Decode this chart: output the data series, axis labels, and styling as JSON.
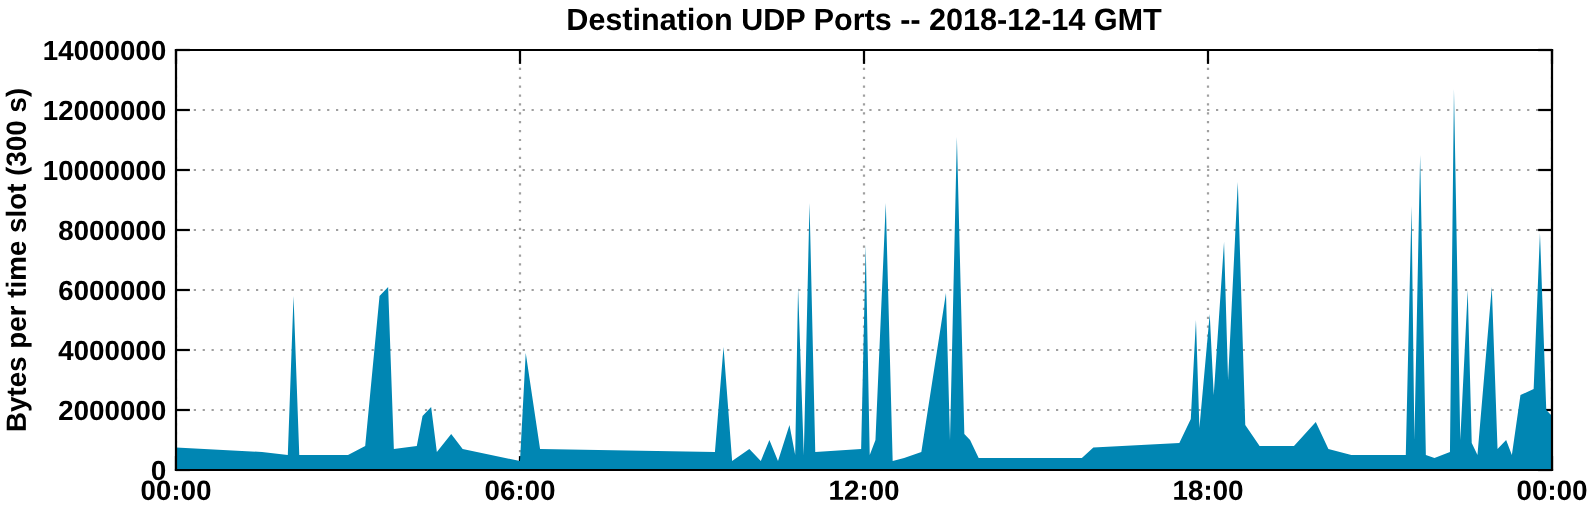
{
  "chart_data": {
    "type": "area",
    "title": "Destination UDP Ports -- 2018-12-14 GMT",
    "ylabel": "Bytes per time slot (300 s)",
    "x": [
      0,
      1.5,
      1.95,
      2.05,
      2.15,
      3.0,
      3.3,
      3.55,
      3.7,
      3.8,
      4.2,
      4.3,
      4.45,
      4.55,
      4.8,
      5.0,
      6.0,
      6.1,
      6.35,
      9.4,
      9.55,
      9.7,
      10.0,
      10.2,
      10.35,
      10.5,
      10.7,
      10.8,
      10.85,
      10.95,
      11.05,
      11.15,
      11.95,
      12.03,
      12.1,
      12.2,
      12.38,
      12.5,
      12.7,
      13.0,
      13.43,
      13.5,
      13.62,
      13.75,
      13.85,
      14.0,
      15.0,
      15.8,
      16.0,
      17.0,
      17.5,
      17.7,
      17.79,
      17.85,
      18.03,
      18.1,
      18.28,
      18.35,
      18.52,
      18.65,
      18.9,
      19.5,
      19.88,
      20.1,
      20.5,
      21.45,
      21.55,
      21.6,
      21.7,
      21.8,
      21.95,
      22.22,
      22.29,
      22.4,
      22.53,
      22.6,
      22.7,
      22.95,
      23.05,
      23.2,
      23.3,
      23.45,
      23.68,
      23.79,
      23.9,
      24
    ],
    "series": [
      {
        "color": "#0086b3",
        "values": [
          750000.0,
          600000.0,
          500000.0,
          5800000.0,
          500000.0,
          500000.0,
          800000.0,
          5800000.0,
          6100000.0,
          700000.0,
          800000.0,
          1800000.0,
          2100000.0,
          600000.0,
          1200000.0,
          700000.0,
          300000.0,
          3900000.0,
          700000.0,
          600000.0,
          4100000.0,
          300000.0,
          700000.0,
          300000.0,
          1000000.0,
          300000.0,
          1500000.0,
          500000.0,
          6100000.0,
          500000.0,
          8900000.0,
          600000.0,
          700000.0,
          7500000.0,
          500000.0,
          1000000.0,
          8900000.0,
          300000.0,
          400000.0,
          600000.0,
          5900000.0,
          1000000.0,
          11100000.0,
          1200000.0,
          1000000.0,
          400000.0,
          400000.0,
          400000.0,
          750000.0,
          850000.0,
          900000.0,
          1700000.0,
          5000000.0,
          1400000.0,
          5200000.0,
          2500000.0,
          7600000.0,
          3000000.0,
          9600000.0,
          1500000.0,
          800000.0,
          800000.0,
          1600000.0,
          700000.0,
          500000.0,
          500000.0,
          8800000.0,
          1000000.0,
          10500000.0,
          500000.0,
          400000.0,
          600000.0,
          12700000.0,
          1000000.0,
          6000000.0,
          900000.0,
          500000.0,
          6100000.0,
          700000.0,
          1000000.0,
          500000.0,
          2500000.0,
          2700000.0,
          7900000.0,
          2000000.0,
          1800000.0
        ]
      }
    ],
    "xlim": [
      0,
      24
    ],
    "xticks": [
      {
        "value": 0,
        "label": "00:00"
      },
      {
        "value": 6,
        "label": "06:00"
      },
      {
        "value": 12,
        "label": "12:00"
      },
      {
        "value": 18,
        "label": "18:00"
      },
      {
        "value": 24,
        "label": "00:00"
      }
    ],
    "ylim": [
      0,
      14000000
    ],
    "yticks": [
      0,
      2000000,
      4000000,
      6000000,
      8000000,
      10000000,
      12000000,
      14000000
    ],
    "grid": true
  }
}
